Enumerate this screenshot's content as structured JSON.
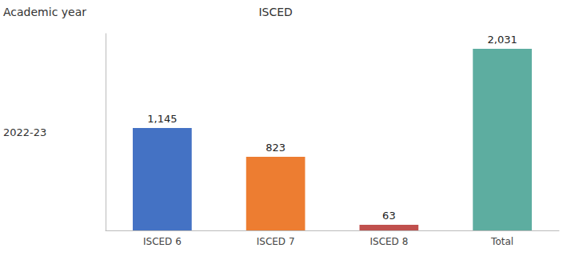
{
  "chart_data": {
    "type": "bar",
    "annotations": [
      "Academic year",
      "ISCED",
      "2022-23"
    ],
    "categories": [
      "ISCED 6",
      "ISCED 7",
      "ISCED 8",
      "Total"
    ],
    "values": [
      1145,
      823,
      63,
      2031
    ],
    "value_labels": [
      "1,145",
      "823",
      "63",
      "2,031"
    ],
    "colors": [
      "#4472C4",
      "#ED7D31",
      "#C0504D",
      "#5DADA0"
    ],
    "ylim": [
      0,
      2200
    ],
    "grid": false,
    "data_labels": true,
    "tick_labels": "x"
  }
}
